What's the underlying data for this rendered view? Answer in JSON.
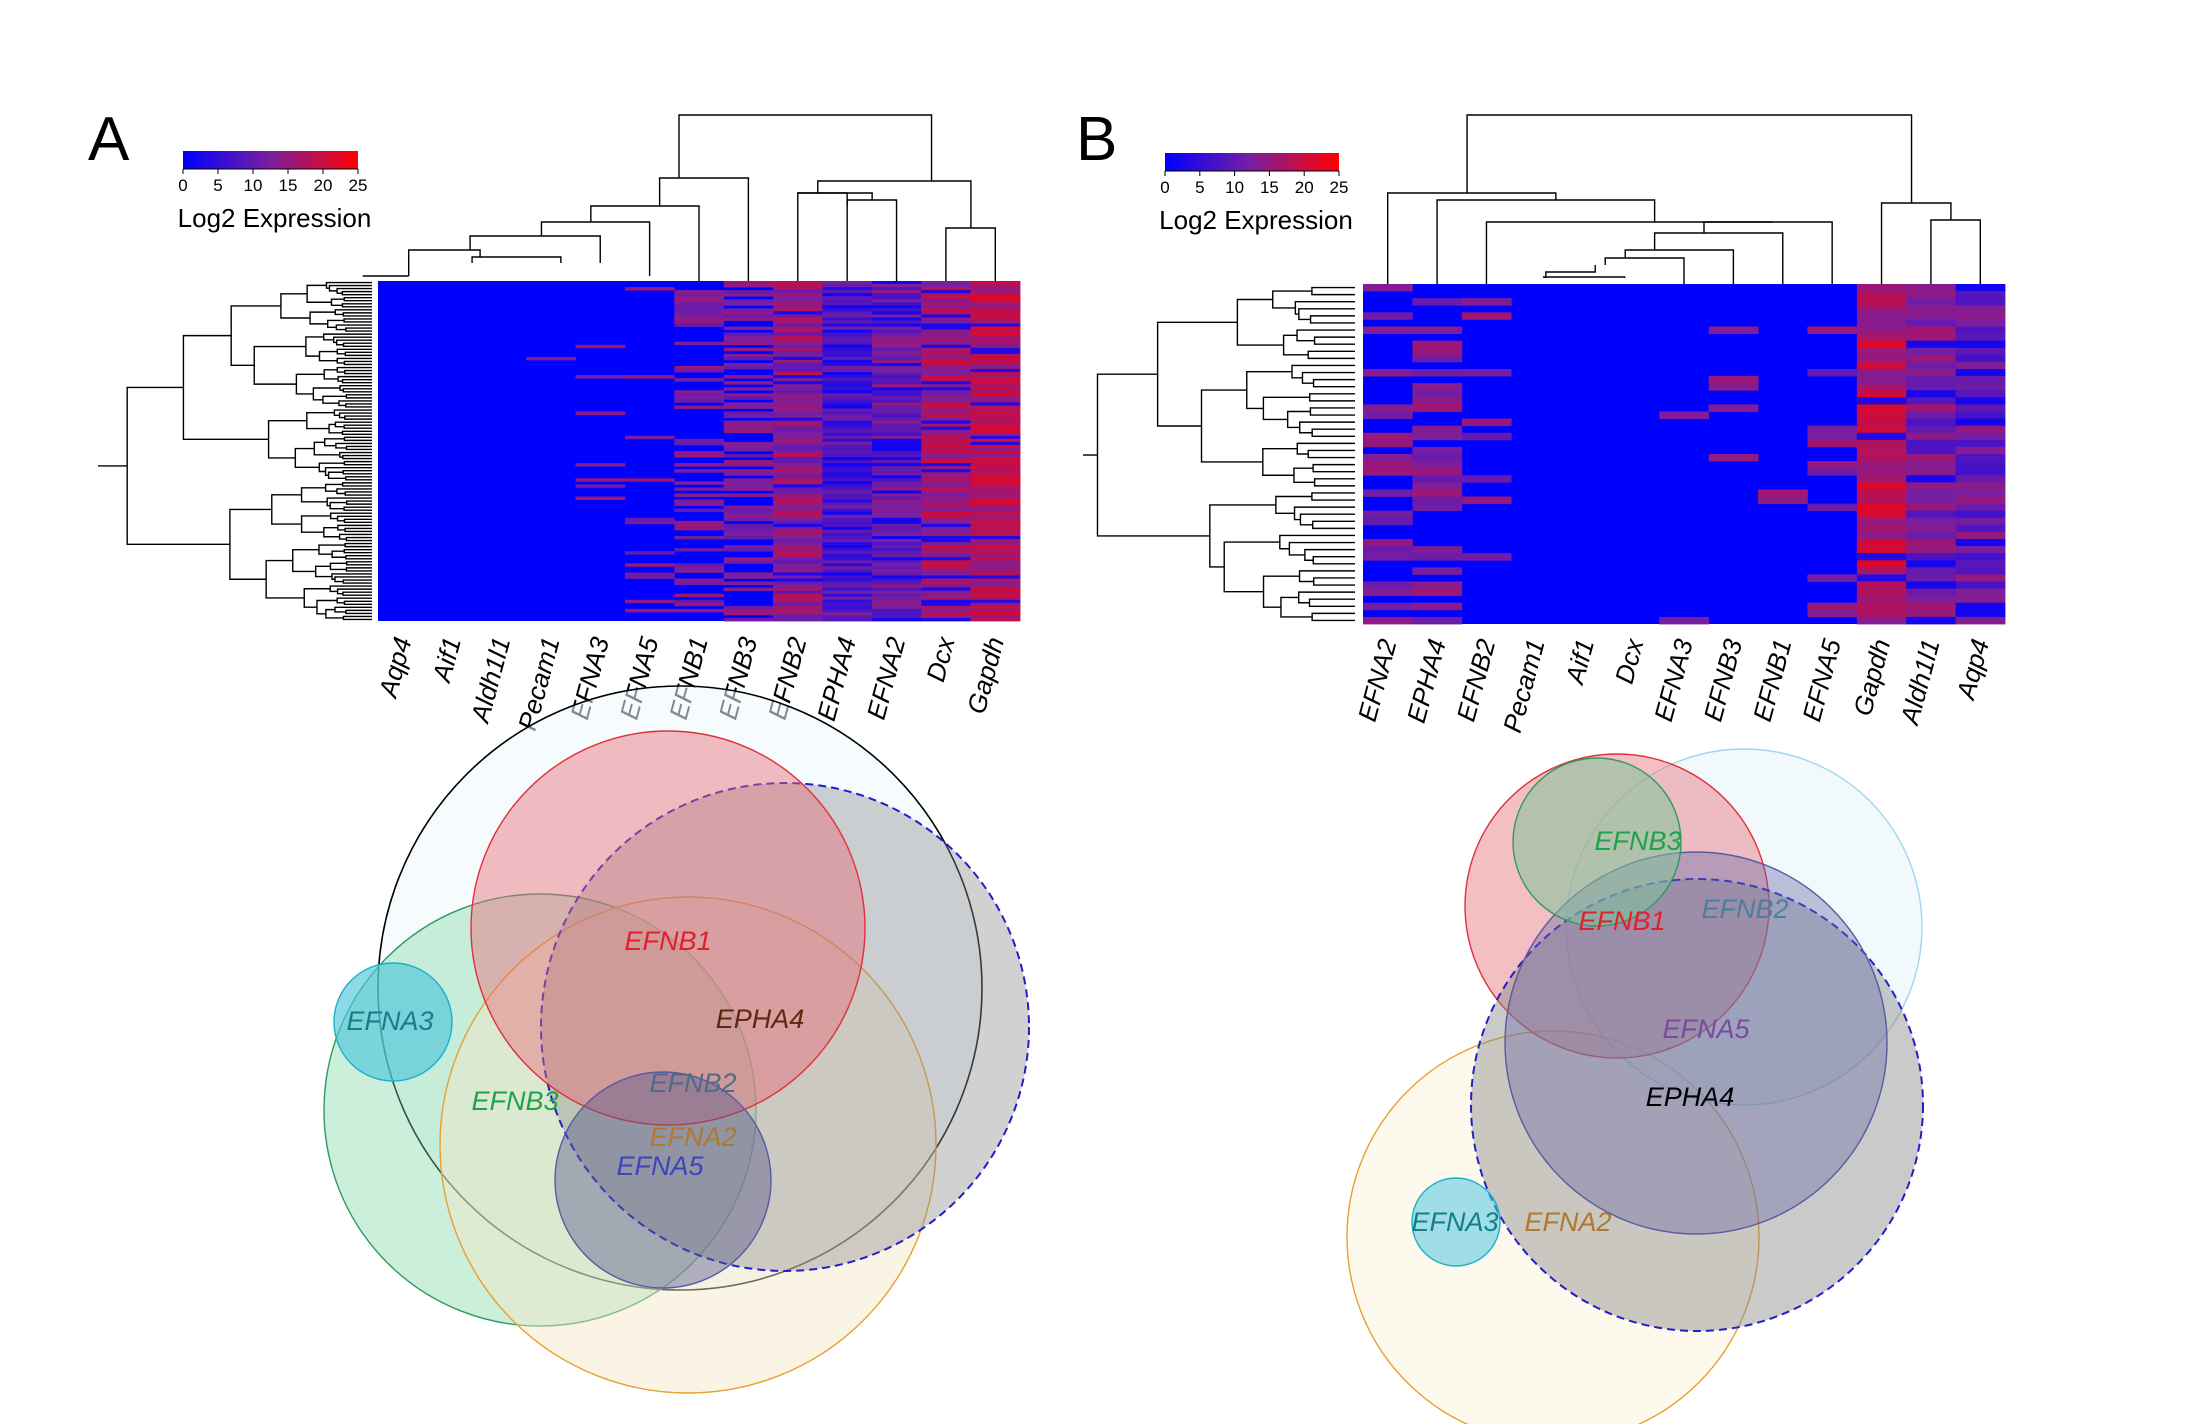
{
  "chart_data": [
    {
      "panel": "A",
      "type": "heatmap",
      "colorbar": {
        "title": "Log2 Expression",
        "ticks": [
          "0",
          "5",
          "10",
          "15",
          "20",
          "25"
        ],
        "range": [
          0,
          25
        ],
        "colors": [
          "#0000ff",
          "#7a1f9e",
          "#ff0000"
        ]
      },
      "columns": [
        "Aqp4",
        "Aif1",
        "Aldh1l1",
        "Pecam1",
        "EFNA3",
        "EFNA5",
        "EFNB1",
        "EFNB3",
        "EFNB2",
        "EPHA4",
        "EFNA2",
        "Dcx",
        "Gapdh"
      ],
      "rows_count": 112,
      "column_mean_expression": [
        0,
        0,
        0,
        0.3,
        0.6,
        1.0,
        3.0,
        5.0,
        14,
        8,
        11,
        16,
        18
      ],
      "venn": {
        "sets": [
          {
            "name": "EFNA3",
            "color": "#1ab0c8",
            "label_color": "#157d8c"
          },
          {
            "name": "EFNB3",
            "color": "#2e9b5e",
            "label_color": "#1fa34a"
          },
          {
            "name": "EFNB1",
            "color": "#e0303a",
            "label_color": "#e0202a"
          },
          {
            "name": "EPHA4",
            "color": "#777777",
            "label_color": "#5a2a10",
            "dashed": true
          },
          {
            "name": "EFNB2",
            "color": "#5a5aa0",
            "label_color": "#4f6a8a"
          },
          {
            "name": "EFNA2",
            "color": "#e8a030",
            "label_color": "#b07830"
          },
          {
            "name": "EFNA5",
            "color": "#5a5aa0",
            "label_color": "#3b45c0"
          },
          {
            "name": "",
            "color": "#000000",
            "label_color": "#000000"
          }
        ]
      }
    },
    {
      "panel": "B",
      "type": "heatmap",
      "colorbar": {
        "title": "Log2 Expression",
        "ticks": [
          "0",
          "5",
          "10",
          "15",
          "20",
          "25"
        ],
        "range": [
          0,
          25
        ],
        "colors": [
          "#0000ff",
          "#7a1f9e",
          "#ff0000"
        ]
      },
      "columns": [
        "EFNA2",
        "EPHA4",
        "EFNB2",
        "Pecam1",
        "Aif1",
        "Dcx",
        "EFNA3",
        "EFNB3",
        "EFNB1",
        "EFNA5",
        "Gapdh",
        "Aldh1l1",
        "Aqp4"
      ],
      "rows_count": 48,
      "column_mean_expression": [
        4,
        5,
        1.5,
        0,
        0,
        0,
        0.3,
        0.4,
        0.6,
        2.5,
        18,
        12,
        11
      ],
      "venn": {
        "sets": [
          {
            "name": "EFNB3",
            "color": "#2e9b5e",
            "label_color": "#1fa34a"
          },
          {
            "name": "EFNB1",
            "color": "#e0303a",
            "label_color": "#e0202a"
          },
          {
            "name": "EFNB2",
            "color": "#9fd8ea",
            "label_color": "#4a7fa0"
          },
          {
            "name": "EFNA5",
            "color": "#5a5aa0",
            "label_color": "#7b4aa0"
          },
          {
            "name": "EPHA4",
            "color": "#777777",
            "label_color": "#000000",
            "dashed": true
          },
          {
            "name": "EFNA3",
            "color": "#1ab0c8",
            "label_color": "#157d8c"
          },
          {
            "name": "EFNA2",
            "color": "#e8a030",
            "label_color": "#b07830"
          }
        ]
      }
    }
  ],
  "panel_letters": [
    "A",
    "B"
  ]
}
